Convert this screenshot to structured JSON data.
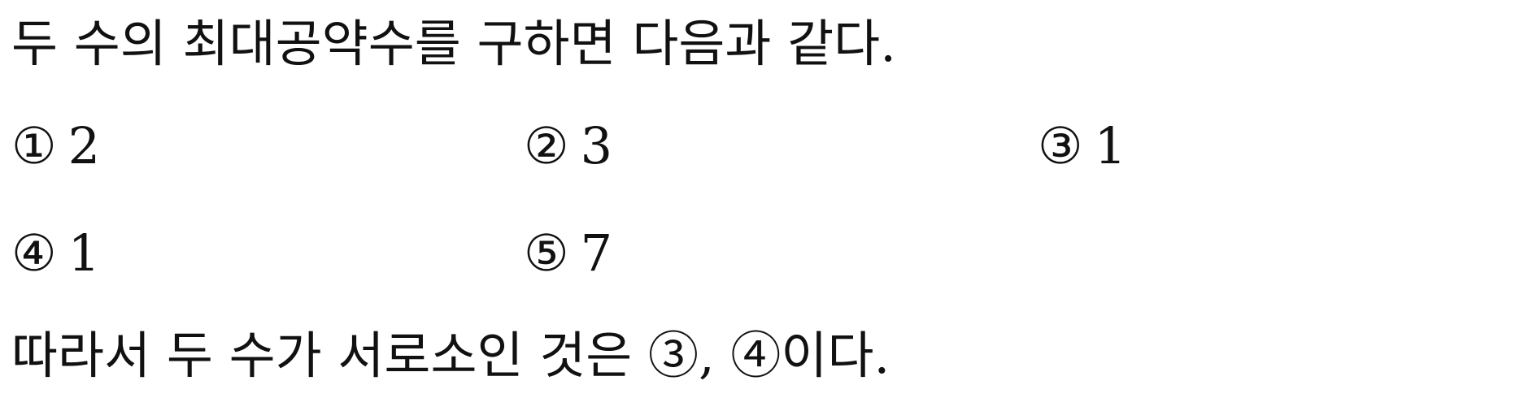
{
  "statement": "두 수의 최대공약수를 구하면 다음과 같다.",
  "choices": [
    {
      "mark": "①",
      "value": "2"
    },
    {
      "mark": "②",
      "value": "3"
    },
    {
      "mark": "③",
      "value": "1"
    },
    {
      "mark": "④",
      "value": "1"
    },
    {
      "mark": "⑤",
      "value": "7"
    }
  ],
  "conclusion": "따라서 두 수가 서로소인 것은 ③, ④이다."
}
